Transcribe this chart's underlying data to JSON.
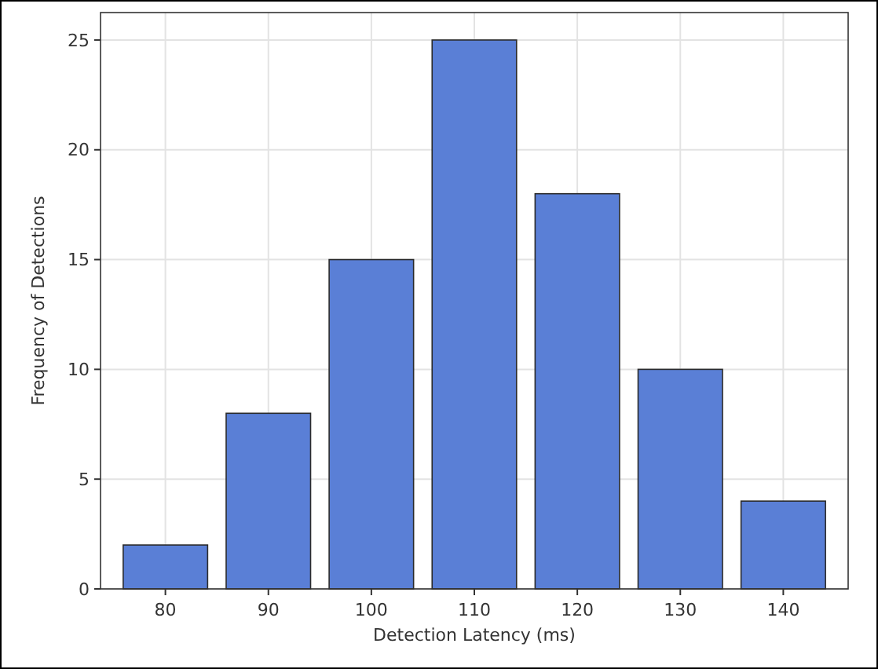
{
  "chart_data": {
    "type": "bar",
    "xlabel": "Detection Latency (ms)",
    "ylabel": "Frequency of Detections",
    "categories": [
      "80",
      "90",
      "100",
      "110",
      "120",
      "130",
      "140"
    ],
    "values": [
      2,
      8,
      15,
      25,
      18,
      10,
      4
    ],
    "color": "#5a7fd6",
    "ylim": [
      0,
      26.25
    ],
    "yticks": [
      0,
      5,
      10,
      15,
      20,
      25
    ],
    "grid": true
  }
}
